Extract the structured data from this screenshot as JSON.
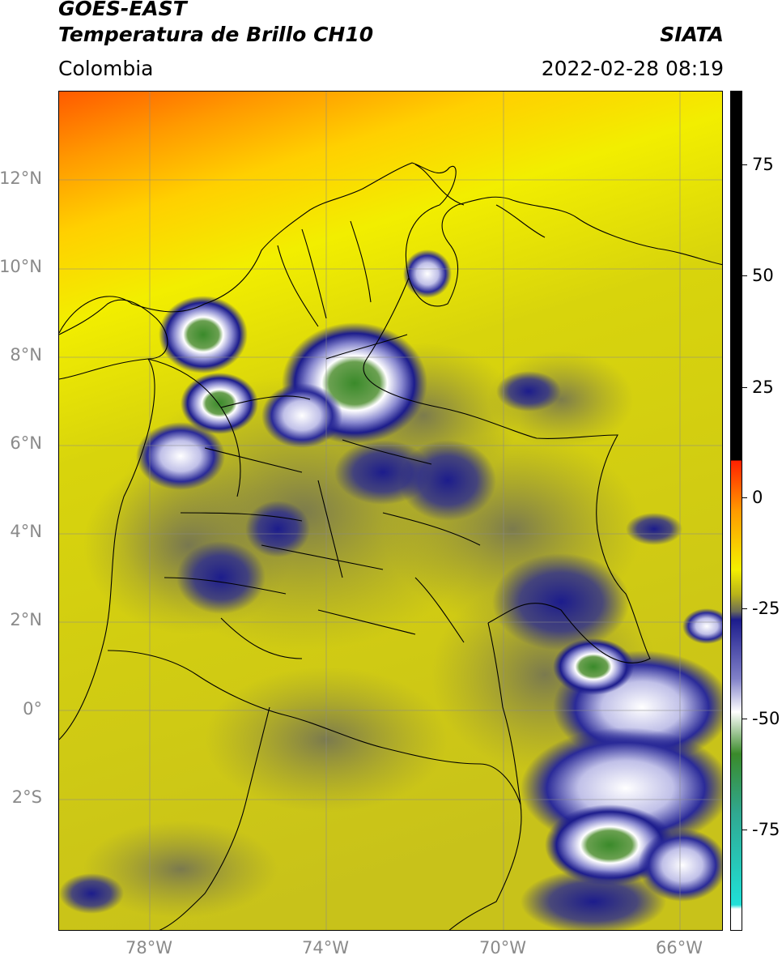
{
  "header": {
    "satellite": "GOES-EAST",
    "product": "Temperatura de Brillo CH10",
    "source": "SIATA",
    "region": "Colombia",
    "datetime": "2022-02-28 08:19"
  },
  "map": {
    "lat_ticks": [
      "12°N",
      "10°N",
      "8°N",
      "6°N",
      "4°N",
      "2°N",
      "0°",
      "2°S"
    ],
    "lon_ticks": [
      "78°W",
      "74°W",
      "70°W",
      "66°W"
    ],
    "grid": true
  },
  "colorbar": {
    "ticks": [
      "75",
      "50",
      "25",
      "0",
      "-25",
      "-50",
      "-75"
    ],
    "colors": {
      "hot": "#000000",
      "red": "#ff2000",
      "orange": "#ff9a00",
      "yellow": "#f4f000",
      "olive": "#b8b21a",
      "gray": "#6c6c58",
      "navy": "#1c1c8c",
      "white": "#ffffff",
      "green": "#3a8a2a",
      "cyan": "#20e0d8"
    }
  }
}
